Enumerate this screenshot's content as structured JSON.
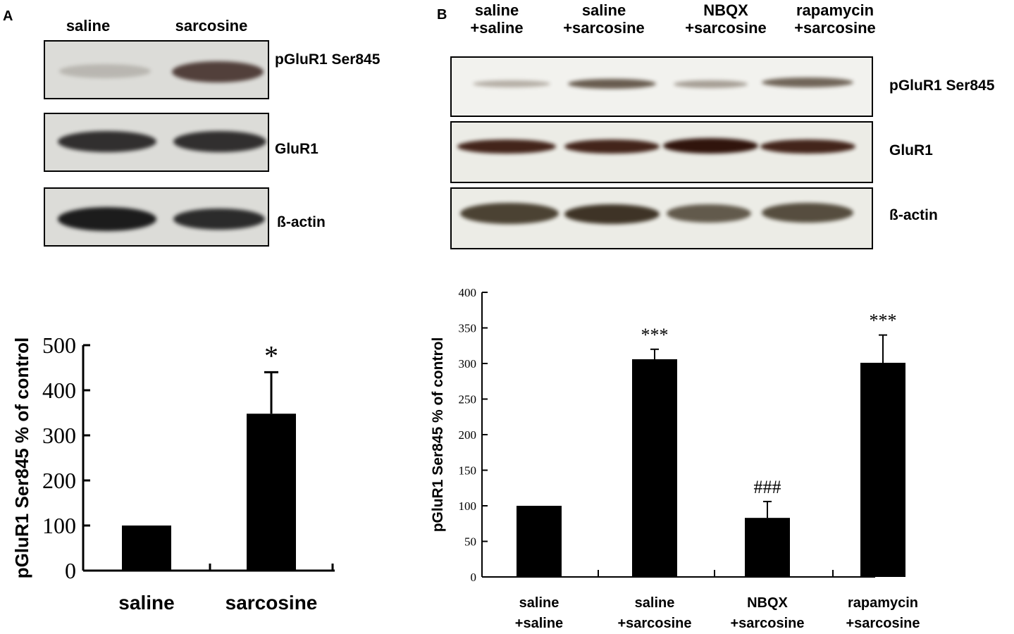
{
  "panel_a": {
    "letter": "A",
    "lanes": [
      "saline",
      "sarcosine"
    ],
    "blots": [
      {
        "label": "pGluR1 Ser845",
        "bands": [
          {
            "intensity": 0.3,
            "color": "#6a6258"
          },
          {
            "intensity": 0.85,
            "color": "#3a2520"
          }
        ]
      },
      {
        "label": "GluR1",
        "bands": [
          {
            "intensity": 0.95,
            "color": "#282626"
          },
          {
            "intensity": 0.95,
            "color": "#282626"
          }
        ]
      },
      {
        "label": "ß-actin",
        "bands": [
          {
            "intensity": 1.0,
            "color": "#1c1c1c"
          },
          {
            "intensity": 0.95,
            "color": "#222222"
          }
        ]
      }
    ]
  },
  "panel_b": {
    "letter": "B",
    "lanes": [
      {
        "line1": "saline",
        "line2": "+saline"
      },
      {
        "line1": "saline",
        "line2": "+sarcosine"
      },
      {
        "line1": "NBQX",
        "line2": "+sarcosine"
      },
      {
        "line1": "rapamycin",
        "line2": "+sarcosine"
      }
    ],
    "blots": [
      {
        "label": "pGluR1 Ser845",
        "bands": [
          {
            "intensity": 0.4,
            "color": "#5a4a3a"
          },
          {
            "intensity": 0.75,
            "color": "#3a2a1a"
          },
          {
            "intensity": 0.45,
            "color": "#4a3a2a"
          },
          {
            "intensity": 0.7,
            "color": "#3a2a1a"
          }
        ]
      },
      {
        "label": "GluR1",
        "bands": [
          {
            "intensity": 0.95,
            "color": "#3a1a10"
          },
          {
            "intensity": 0.95,
            "color": "#3a1a10"
          },
          {
            "intensity": 1.0,
            "color": "#30140c"
          },
          {
            "intensity": 0.95,
            "color": "#3a1a10"
          }
        ]
      },
      {
        "label": "ß-actin",
        "bands": [
          {
            "intensity": 0.9,
            "color": "#3a3020"
          },
          {
            "intensity": 0.95,
            "color": "#352a1c"
          },
          {
            "intensity": 0.8,
            "color": "#403626"
          },
          {
            "intensity": 0.85,
            "color": "#3c3222"
          }
        ]
      }
    ]
  },
  "chart_data": [
    {
      "type": "bar",
      "categories": [
        "saline",
        "sarcosine"
      ],
      "values": [
        100,
        348
      ],
      "errors": [
        0,
        92
      ],
      "annotations": [
        "",
        "*"
      ],
      "ylabel": "pGluR1 Ser845 % of control",
      "xlabel": "",
      "ylim": [
        0,
        500
      ],
      "yticks": [
        0,
        100,
        200,
        300,
        400,
        500
      ],
      "bar_color": "#000000"
    },
    {
      "type": "bar",
      "categories": [
        "saline +saline",
        "saline +sarcosine",
        "NBQX +sarcosine",
        "rapamycin +sarcosine"
      ],
      "category_lines": [
        [
          "saline",
          "+saline"
        ],
        [
          "saline",
          "+sarcosine"
        ],
        [
          "NBQX",
          "+sarcosine"
        ],
        [
          "rapamycin",
          "+sarcosine"
        ]
      ],
      "values": [
        100,
        306,
        83,
        301
      ],
      "errors": [
        0,
        14,
        23,
        39
      ],
      "annotations": [
        "",
        "***",
        "###",
        "***"
      ],
      "ylabel": "pGluR1 Ser845 % of control",
      "xlabel": "",
      "ylim": [
        0,
        400
      ],
      "yticks": [
        0,
        50,
        100,
        150,
        200,
        250,
        300,
        350,
        400
      ],
      "bar_color": "#000000"
    }
  ]
}
